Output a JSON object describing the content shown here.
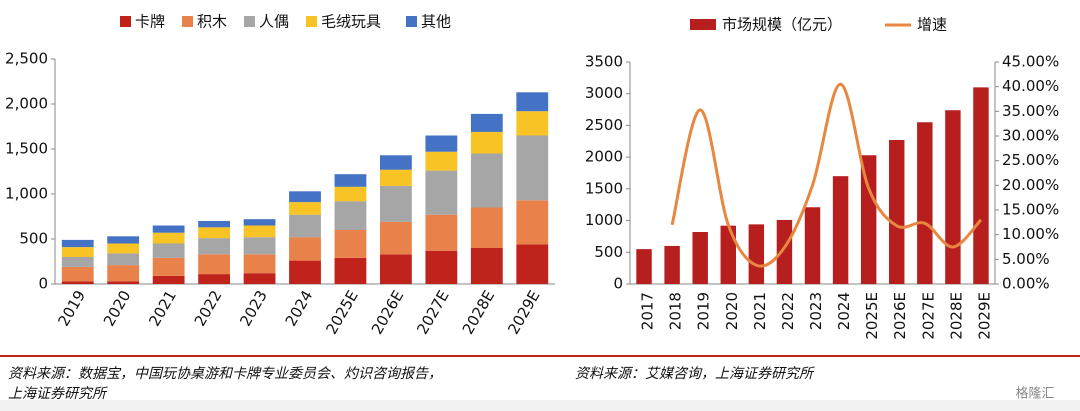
{
  "chart_data": [
    {
      "type": "bar",
      "stacked": true,
      "categories": [
        "2019",
        "2020",
        "2021",
        "2022",
        "2023",
        "2024",
        "2025E",
        "2026E",
        "2027E",
        "2028E",
        "2029E"
      ],
      "series": [
        {
          "name": "卡牌",
          "color": "#c0231c",
          "values": [
            30,
            30,
            90,
            110,
            120,
            260,
            290,
            330,
            370,
            400,
            440
          ]
        },
        {
          "name": "积木",
          "color": "#e8824a",
          "values": [
            160,
            180,
            200,
            220,
            210,
            260,
            310,
            360,
            400,
            450,
            490
          ]
        },
        {
          "name": "人偶",
          "color": "#a6a6a6",
          "values": [
            110,
            130,
            160,
            180,
            190,
            250,
            320,
            400,
            490,
            600,
            720
          ]
        },
        {
          "name": "毛绒玩具",
          "color": "#f7c325",
          "values": [
            110,
            110,
            120,
            120,
            130,
            140,
            160,
            180,
            210,
            240,
            270
          ]
        },
        {
          "name": "其他",
          "color": "#4472c4",
          "values": [
            80,
            80,
            80,
            70,
            70,
            120,
            140,
            160,
            180,
            200,
            210
          ]
        }
      ],
      "ylim": [
        0,
        2500
      ],
      "yticks": [
        0,
        500,
        {
          "value": 1000,
          "label": "1,000"
        },
        {
          "value": 1500,
          "label": "1,500"
        },
        {
          "value": 2000,
          "label": "2,000"
        },
        {
          "value": 2500,
          "label": "2,500"
        }
      ]
    },
    {
      "type": "bar",
      "stacked": false,
      "categories": [
        "2017",
        "2018",
        "2019",
        "2020",
        "2021",
        "2022",
        "2023",
        "2024",
        "2025E",
        "2026E",
        "2027E",
        "2028E",
        "2029E"
      ],
      "series": [
        {
          "name": "市场规模（亿元）",
          "color": "#b61f1d",
          "values": [
            550,
            600,
            820,
            920,
            940,
            1010,
            1210,
            1700,
            2030,
            2270,
            2550,
            2740,
            3100
          ]
        },
        {
          "name": "增速",
          "type": "line",
          "axis": "y2",
          "color": "#e8873f",
          "values": [
            null,
            12,
            35.3,
            12,
            3.8,
            7.4,
            20,
            40.5,
            19.4,
            11.8,
            12.3,
            7.5,
            13
          ]
        }
      ],
      "ylim": [
        0,
        3500
      ],
      "yticks": [
        0,
        500,
        1000,
        1500,
        2000,
        2500,
        3000,
        3500
      ],
      "y2lim": [
        0,
        45
      ],
      "y2ticks": [
        {
          "value": 0,
          "label": "0.00%"
        },
        {
          "value": 5,
          "label": "5.00%"
        },
        {
          "value": 10,
          "label": "10.00%"
        },
        {
          "value": 15,
          "label": "15.00%"
        },
        {
          "value": 20,
          "label": "20.00%"
        },
        {
          "value": 25,
          "label": "25.00%"
        },
        {
          "value": 30,
          "label": "30.00%"
        },
        {
          "value": 35,
          "label": "35.00%"
        },
        {
          "value": 40,
          "label": "40.00%"
        },
        {
          "value": 45,
          "label": "45.00%"
        }
      ]
    }
  ],
  "sources": [
    "资料来源：数据宝，中国玩协桌游和卡牌专业委员会、灼识咨询报告，",
    "上海证券研究所",
    "资料来源：艾媒咨询，上海证券研究所"
  ],
  "watermark": "格隆汇"
}
